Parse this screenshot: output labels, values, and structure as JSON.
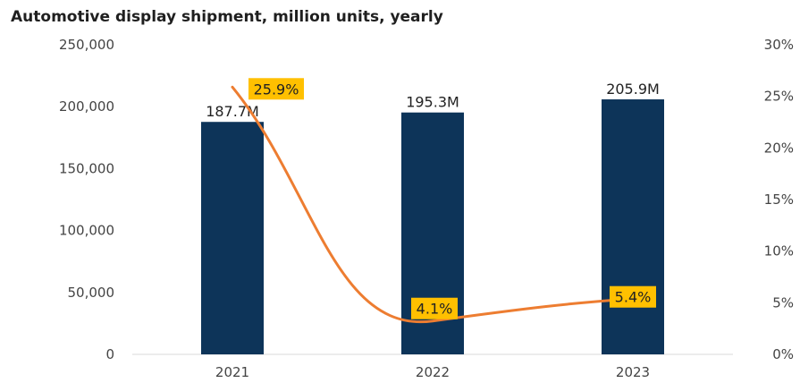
{
  "chart_data": {
    "type": "bar",
    "title": "Automotive display shipment, million units, yearly",
    "categories": [
      "2021",
      "2022",
      "2023"
    ],
    "series": [
      {
        "type": "bar",
        "axis": "left",
        "values": [
          187700,
          195300,
          205900
        ],
        "value_labels": [
          "187.7M",
          "195.3M",
          "205.9M"
        ]
      },
      {
        "type": "line",
        "axis": "right",
        "smooth": true,
        "values": [
          25.9,
          4.1,
          5.4
        ],
        "value_labels": [
          "25.9%",
          "4.1%",
          "5.4%"
        ]
      }
    ],
    "y_left": {
      "min": 0,
      "max": 250000,
      "ticks": [
        "0",
        "50,000",
        "100,000",
        "150,000",
        "200,000",
        "250,000"
      ]
    },
    "y_right": {
      "min": 0,
      "max": 30,
      "ticks": [
        "0%",
        "5%",
        "10%",
        "15%",
        "20%",
        "25%",
        "30%"
      ]
    },
    "grid": false,
    "legend": "none",
    "colors": {
      "bar": "#0d3459",
      "line": "#ed7d31",
      "label_bg": "#ffc000"
    }
  }
}
